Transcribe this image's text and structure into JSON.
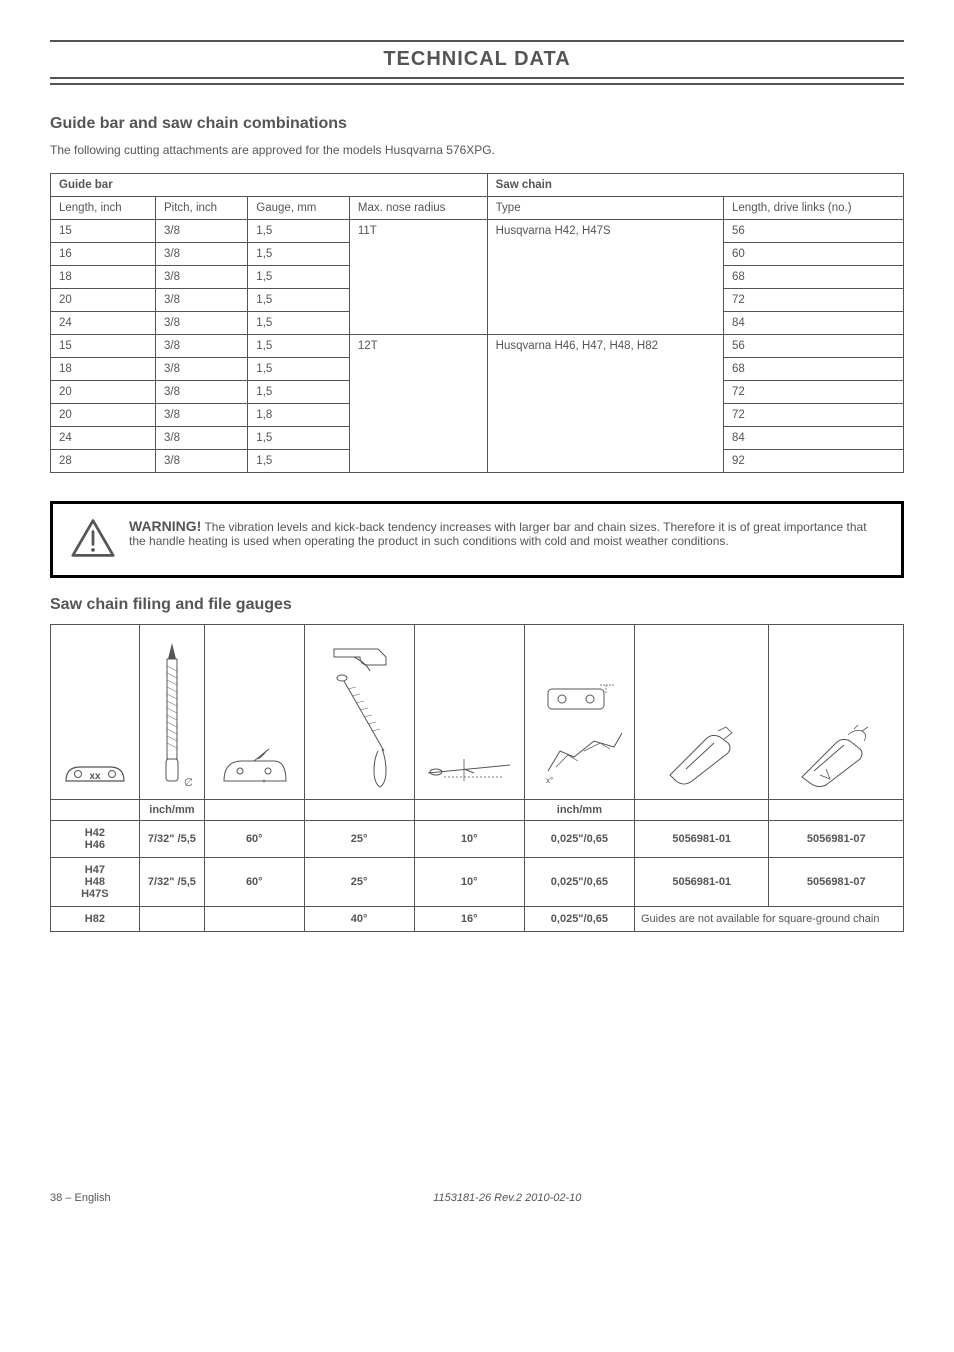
{
  "header": {
    "title": "TECHNICAL DATA"
  },
  "section1": {
    "heading": "Guide bar and saw chain combinations",
    "intro": "The following cutting attachments are approved for the models Husqvarna 576XPG.",
    "group_bar": "Guide bar",
    "group_chain": "Saw chain",
    "cols": {
      "length": "Length, inch",
      "pitch": "Pitch, inch",
      "gauge": "Gauge, mm",
      "nose": "Max. nose radius",
      "type": "Type",
      "drive": "Length, drive links (no.)"
    },
    "rows": [
      {
        "len": "15",
        "pitch": "3/8",
        "gauge": "1,5",
        "nose": "11T",
        "type": "Husqvarna H42, H47S",
        "drive": "56"
      },
      {
        "len": "16",
        "pitch": "3/8",
        "gauge": "1,5",
        "nose": "",
        "type": "",
        "drive": "60"
      },
      {
        "len": "18",
        "pitch": "3/8",
        "gauge": "1,5",
        "nose": "",
        "type": "",
        "drive": "68"
      },
      {
        "len": "20",
        "pitch": "3/8",
        "gauge": "1,5",
        "nose": "",
        "type": "",
        "drive": "72"
      },
      {
        "len": "24",
        "pitch": "3/8",
        "gauge": "1,5",
        "nose": "",
        "type": "",
        "drive": "84"
      },
      {
        "len": "15",
        "pitch": "3/8",
        "gauge": "1,5",
        "nose": "12T",
        "type": "Husqvarna H46, H47, H48, H82",
        "drive": "56"
      },
      {
        "len": "18",
        "pitch": "3/8",
        "gauge": "1,5",
        "nose": "",
        "type": "",
        "drive": "68"
      },
      {
        "len": "20",
        "pitch": "3/8",
        "gauge": "1,5",
        "nose": "",
        "type": "",
        "drive": "72"
      },
      {
        "len": "20",
        "pitch": "3/8",
        "gauge": "1,8",
        "nose": "",
        "type": "",
        "drive": "72"
      },
      {
        "len": "24",
        "pitch": "3/8",
        "gauge": "1,5",
        "nose": "",
        "type": "",
        "drive": "84"
      },
      {
        "len": "28",
        "pitch": "3/8",
        "gauge": "1,5",
        "nose": "",
        "type": "",
        "drive": "92"
      }
    ],
    "nose_span1": 5,
    "type_span1": 5,
    "nose_span2": 6,
    "type_span2": 6
  },
  "warning": {
    "label": "WARNING!",
    "text": " The vibration levels and kick-back tendency increases with larger bar and chain sizes. Therefore it is of great importance that the handle heating is used when operating the product in such conditions with cold and moist weather conditions."
  },
  "section2": {
    "heading": "Saw chain filing and file gauges",
    "unit_inchmm": "inch/mm",
    "rows": [
      {
        "chain": "H42\nH46",
        "dia": "7/32\" /5,5",
        "a1": "60°",
        "a2": "25°",
        "a3": "10°",
        "depth": "0,025\"/0,65",
        "g1": "5056981-01",
        "g2": "5056981-07"
      },
      {
        "chain": "H47\nH48\nH47S",
        "dia": "7/32\" /5,5",
        "a1": "60°",
        "a2": "25°",
        "a3": "10°",
        "depth": "0,025\"/0,65",
        "g1": "5056981-01",
        "g2": "5056981-07"
      },
      {
        "chain": "H82",
        "dia": "",
        "a1": "",
        "a2": "40°",
        "a3": "16°",
        "depth": "0,025\"/0,65",
        "note": "Guides are not available for square-ground chain"
      }
    ]
  },
  "footer": {
    "page": "38 –",
    "lang": "English",
    "code": "1153181-26 Rev.2 2010-02-10"
  }
}
